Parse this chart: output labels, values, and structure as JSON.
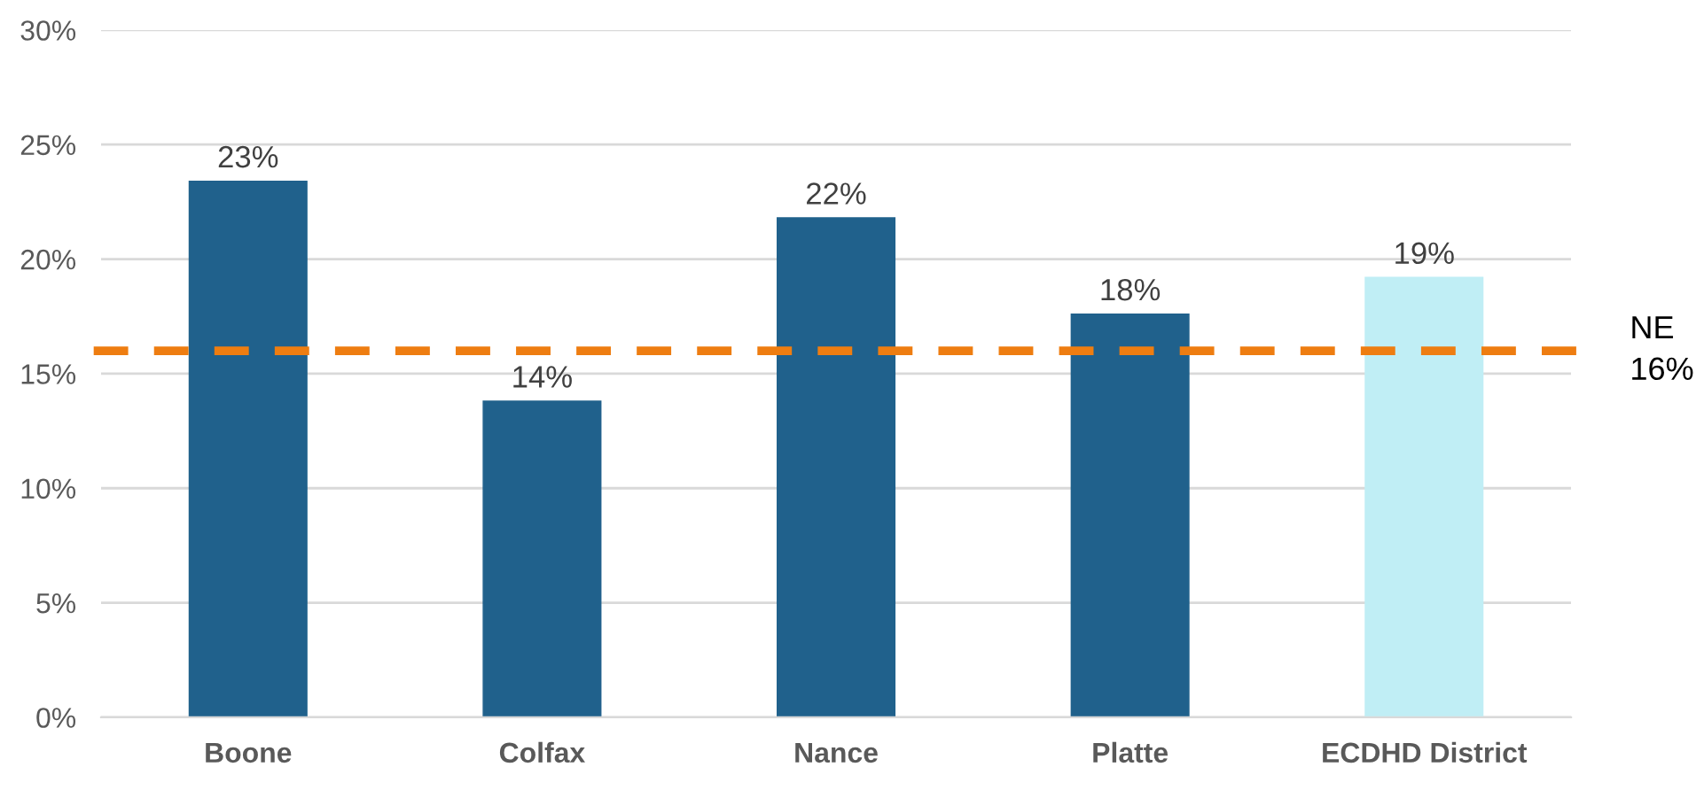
{
  "chart_data": {
    "type": "bar",
    "categories": [
      "Boone",
      "Colfax",
      "Nance",
      "Platte",
      "ECDHD District"
    ],
    "values": [
      23.4,
      13.8,
      21.8,
      17.6,
      19.2
    ],
    "colors": [
      "#20618c",
      "#20618c",
      "#20618c",
      "#20618c",
      "#c0eef5"
    ],
    "value_labels": [
      "23%",
      "14%",
      "22%",
      "18%",
      "19%"
    ],
    "ylim": [
      0,
      30
    ],
    "yticks": [
      {
        "value": 0,
        "label": "0%"
      },
      {
        "value": 5,
        "label": "5%"
      },
      {
        "value": 10,
        "label": "10%"
      },
      {
        "value": 15,
        "label": "15%"
      },
      {
        "value": 20,
        "label": "20%"
      },
      {
        "value": 25,
        "label": "25%"
      },
      {
        "value": 30,
        "label": "30%"
      }
    ],
    "ref_lines": [
      {
        "axis": "y",
        "value": 16,
        "label": "NE\n16%",
        "color": "#ee7d11",
        "line_style": "dashed"
      }
    ],
    "grid": "y",
    "legend": false
  }
}
